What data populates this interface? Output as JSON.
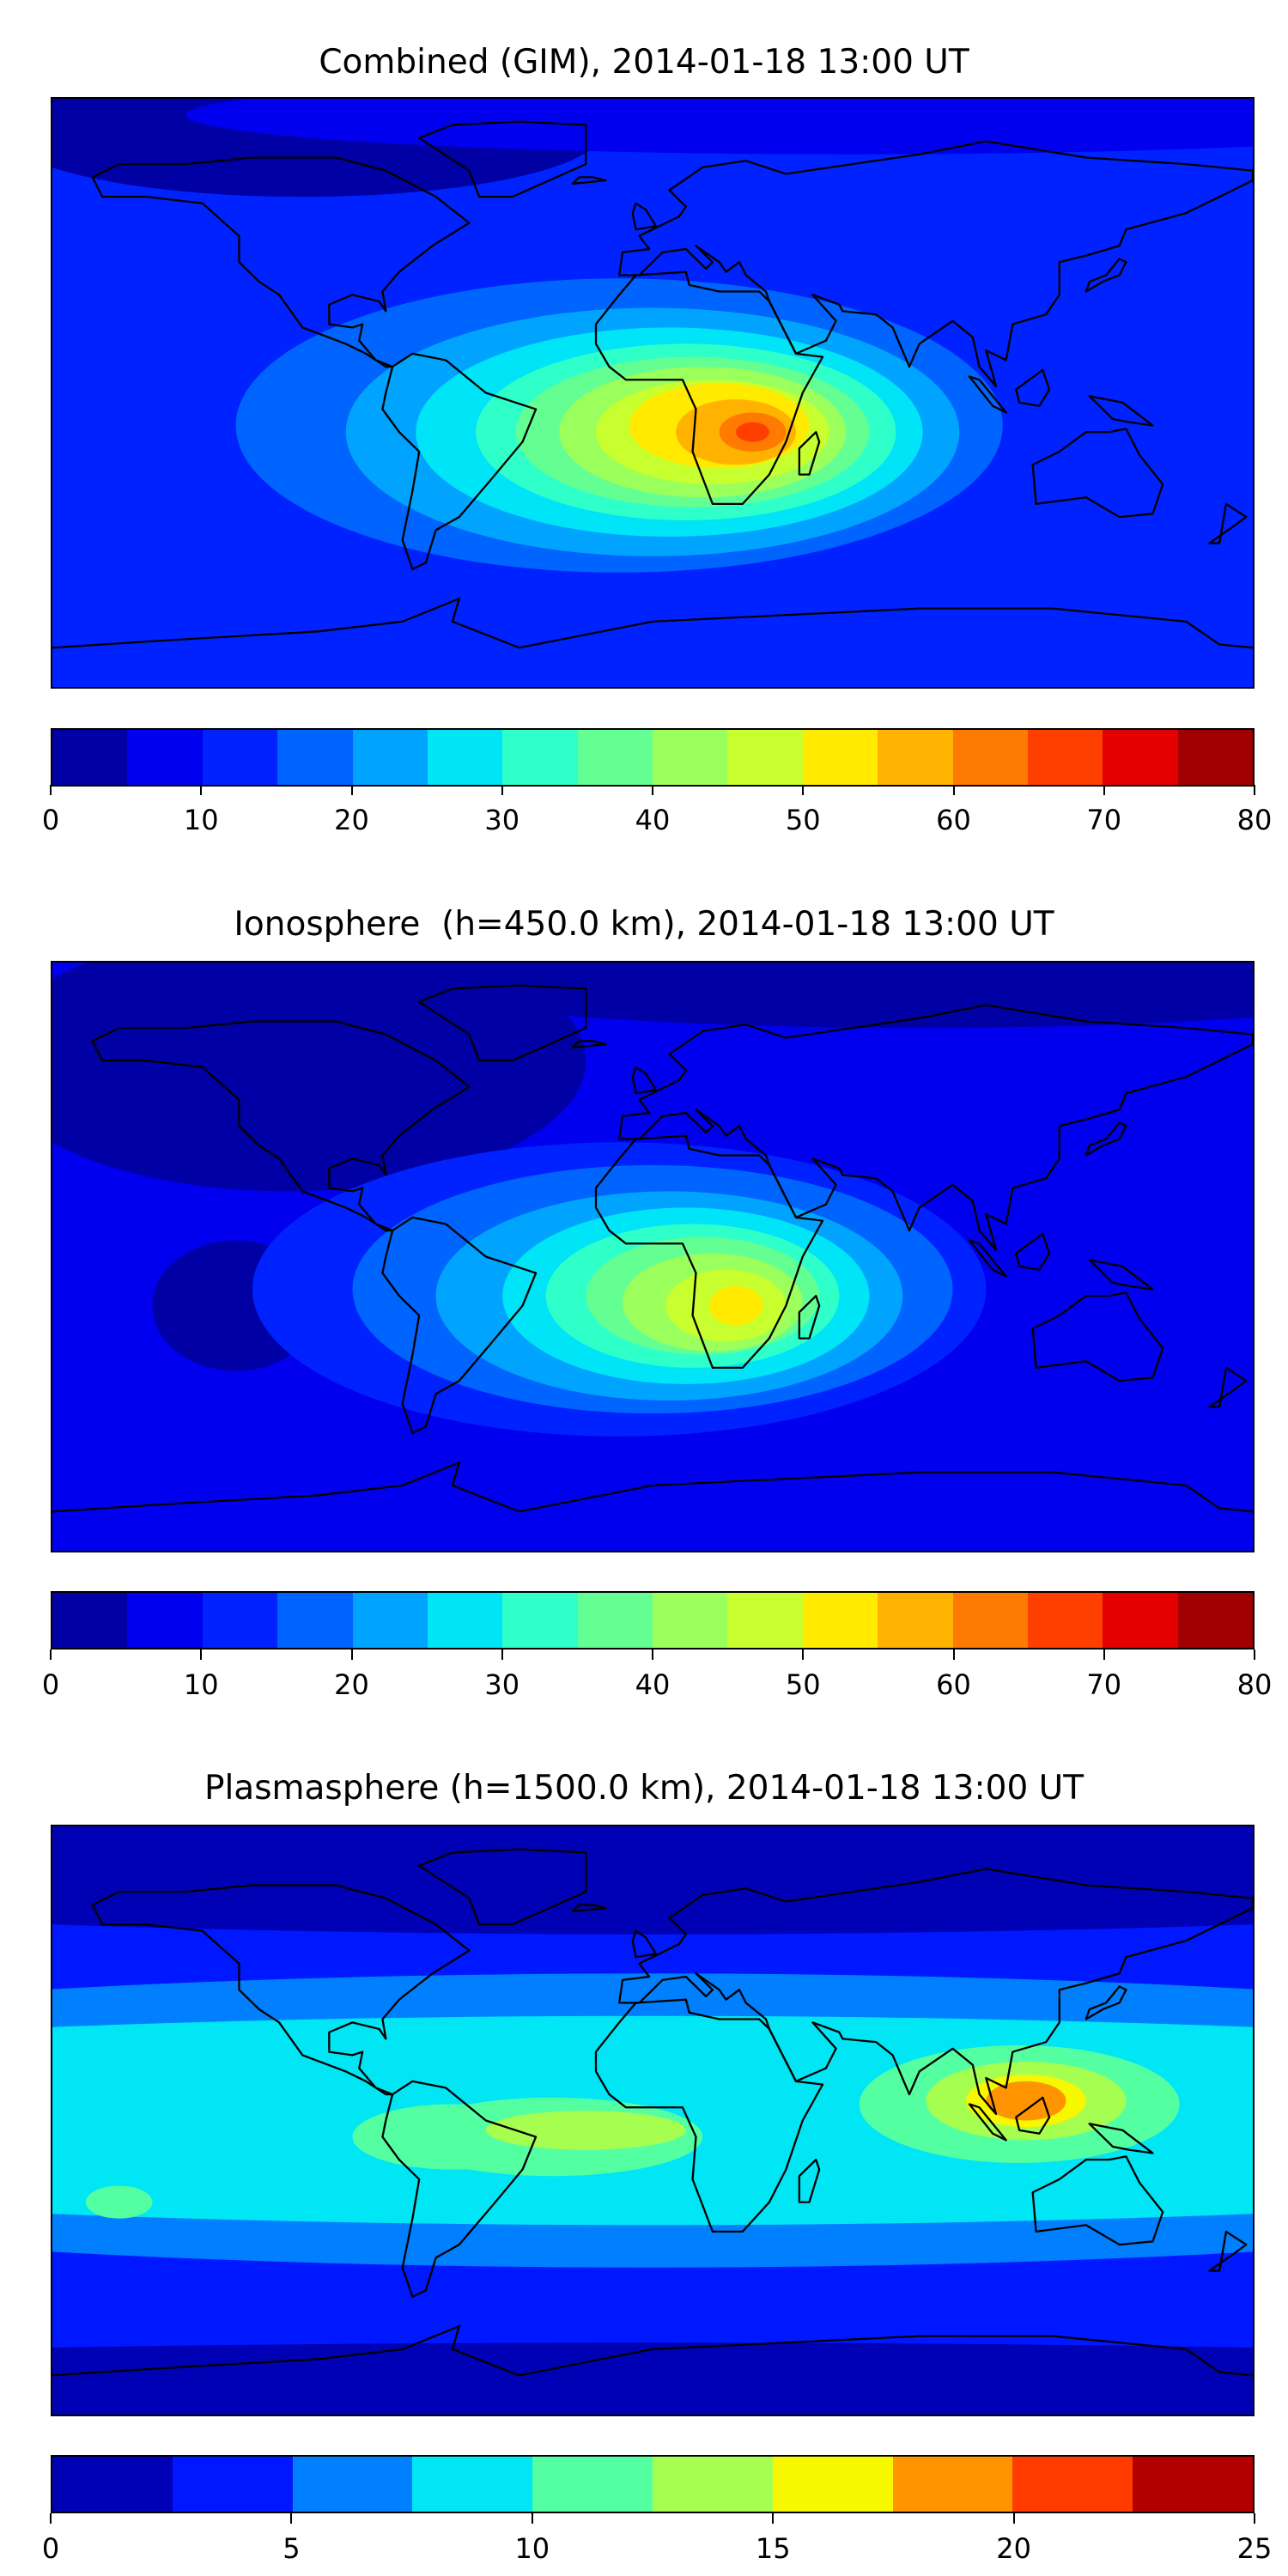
{
  "chart_data": [
    {
      "type": "heatmap",
      "title": "Combined (GIM), 2014-01-18 13:00 UT",
      "projection": "plate-carree",
      "xlim": [
        -180,
        180
      ],
      "ylim": [
        -90,
        90
      ],
      "levels": [
        0,
        5,
        10,
        15,
        20,
        25,
        30,
        35,
        40,
        45,
        50,
        55,
        60,
        65,
        70,
        75,
        80
      ],
      "colors": [
        "#0000a4",
        "#0000ee",
        "#0022ff",
        "#0064ff",
        "#00a4ff",
        "#00e4f8",
        "#2fffc8",
        "#64ff93",
        "#9bff5c",
        "#c8ff2f",
        "#ffea00",
        "#ffb200",
        "#ff7a00",
        "#ff3f00",
        "#e40000",
        "#a00000"
      ],
      "tick_labels": [
        "0",
        "10",
        "20",
        "30",
        "40",
        "50",
        "60",
        "70",
        "80"
      ],
      "background_level": 2,
      "regions": [
        {
          "lon": -105,
          "lat": 80,
          "rlon": 90,
          "rlat": 20,
          "level": 0
        },
        {
          "lon": 60,
          "lat": 85,
          "rlon": 200,
          "rlat": 12,
          "level": 1
        },
        {
          "lon": -10,
          "lat": -10,
          "rlon": 115,
          "rlat": 45,
          "level": 3
        },
        {
          "lon": 0,
          "lat": -12,
          "rlon": 92,
          "rlat": 38,
          "level": 4
        },
        {
          "lon": 5,
          "lat": -12,
          "rlon": 76,
          "rlat": 32,
          "level": 5
        },
        {
          "lon": 10,
          "lat": -12,
          "rlon": 63,
          "rlat": 27,
          "level": 6
        },
        {
          "lon": 12,
          "lat": -12,
          "rlon": 53,
          "rlat": 23,
          "level": 7
        },
        {
          "lon": 15,
          "lat": -12,
          "rlon": 43,
          "rlat": 20,
          "level": 8
        },
        {
          "lon": 18,
          "lat": -12,
          "rlon": 35,
          "rlat": 16,
          "level": 9
        },
        {
          "lon": 20,
          "lat": -10,
          "rlon": 27,
          "rlat": 13,
          "level": 10
        },
        {
          "lon": 25,
          "lat": -12,
          "rlon": 18,
          "rlat": 10,
          "level": 11
        },
        {
          "lon": 30,
          "lat": -12,
          "rlon": 10,
          "rlat": 6,
          "level": 12
        },
        {
          "lon": 30,
          "lat": -12,
          "rlon": 5,
          "rlat": 3,
          "level": 13
        }
      ]
    },
    {
      "type": "heatmap",
      "title": "Ionosphere  (h=450.0 km), 2014-01-18 13:00 UT",
      "projection": "plate-carree",
      "xlim": [
        -180,
        180
      ],
      "ylim": [
        -90,
        90
      ],
      "levels": [
        0,
        5,
        10,
        15,
        20,
        25,
        30,
        35,
        40,
        45,
        50,
        55,
        60,
        65,
        70,
        75,
        80
      ],
      "colors": [
        "#0000a4",
        "#0000ee",
        "#0022ff",
        "#0064ff",
        "#00a4ff",
        "#00e4f8",
        "#2fffc8",
        "#64ff93",
        "#9bff5c",
        "#c8ff2f",
        "#ffea00",
        "#ffb200",
        "#ff7a00",
        "#ff3f00",
        "#e40000",
        "#a00000"
      ],
      "tick_labels": [
        "0",
        "10",
        "20",
        "30",
        "40",
        "50",
        "60",
        "70",
        "80"
      ],
      "background_level": 1,
      "regions": [
        {
          "lon": -110,
          "lat": 60,
          "rlon": 90,
          "rlat": 40,
          "level": 0
        },
        {
          "lon": 80,
          "lat": 85,
          "rlon": 160,
          "rlat": 15,
          "level": 0
        },
        {
          "lon": -125,
          "lat": -15,
          "rlon": 25,
          "rlat": 20,
          "level": 0
        },
        {
          "lon": -10,
          "lat": -10,
          "rlon": 110,
          "rlat": 45,
          "level": 2
        },
        {
          "lon": 0,
          "lat": -10,
          "rlon": 90,
          "rlat": 38,
          "level": 3
        },
        {
          "lon": 5,
          "lat": -12,
          "rlon": 70,
          "rlat": 32,
          "level": 4
        },
        {
          "lon": 10,
          "lat": -12,
          "rlon": 55,
          "rlat": 27,
          "level": 5
        },
        {
          "lon": 12,
          "lat": -12,
          "rlon": 44,
          "rlat": 22,
          "level": 6
        },
        {
          "lon": 15,
          "lat": -12,
          "rlon": 35,
          "rlat": 18,
          "level": 7
        },
        {
          "lon": 18,
          "lat": -14,
          "rlon": 27,
          "rlat": 15,
          "level": 8
        },
        {
          "lon": 22,
          "lat": -15,
          "rlon": 18,
          "rlat": 11,
          "level": 9
        },
        {
          "lon": 25,
          "lat": -15,
          "rlon": 8,
          "rlat": 6,
          "level": 10
        }
      ]
    },
    {
      "type": "heatmap",
      "title": "Plasmasphere (h=1500.0 km), 2014-01-18 13:00 UT",
      "projection": "plate-carree",
      "xlim": [
        -180,
        180
      ],
      "ylim": [
        -90,
        90
      ],
      "levels": [
        0,
        2.5,
        5,
        7.5,
        10,
        12.5,
        15,
        17.5,
        20,
        22.5,
        25
      ],
      "colors": [
        "#0000b4",
        "#0018ff",
        "#0080ff",
        "#00e6f5",
        "#54ffa2",
        "#a6ff50",
        "#f7f700",
        "#ff9400",
        "#ff3b00",
        "#b20000"
      ],
      "tick_labels": [
        "0",
        "5",
        "10",
        "15",
        "20",
        "25"
      ],
      "background_level": 1,
      "regions": [
        {
          "lon": 0,
          "lat": 85,
          "rlon": 400,
          "rlat": 28,
          "level": 0
        },
        {
          "lon": 0,
          "lat": -82,
          "rlon": 400,
          "rlat": 14,
          "level": 0
        },
        {
          "lon": 0,
          "lat": 0,
          "rlon": 400,
          "rlat": 45,
          "level": 2
        },
        {
          "lon": 0,
          "lat": 0,
          "rlon": 400,
          "rlat": 32,
          "level": 3
        },
        {
          "lon": -30,
          "lat": -5,
          "rlon": 45,
          "rlat": 12,
          "level": 4
        },
        {
          "lon": 110,
          "lat": 5,
          "rlon": 48,
          "rlat": 18,
          "level": 4
        },
        {
          "lon": -160,
          "lat": -25,
          "rlon": 10,
          "rlat": 5,
          "level": 4
        },
        {
          "lon": -60,
          "lat": -5,
          "rlon": 30,
          "rlat": 10,
          "level": 4
        },
        {
          "lon": -20,
          "lat": -3,
          "rlon": 30,
          "rlat": 6,
          "level": 5
        },
        {
          "lon": 112,
          "lat": 6,
          "rlon": 30,
          "rlat": 12,
          "level": 5
        },
        {
          "lon": 112,
          "lat": 6,
          "rlon": 18,
          "rlat": 8,
          "level": 6
        },
        {
          "lon": 112,
          "lat": 6,
          "rlon": 12,
          "rlat": 6,
          "level": 7
        }
      ]
    }
  ]
}
